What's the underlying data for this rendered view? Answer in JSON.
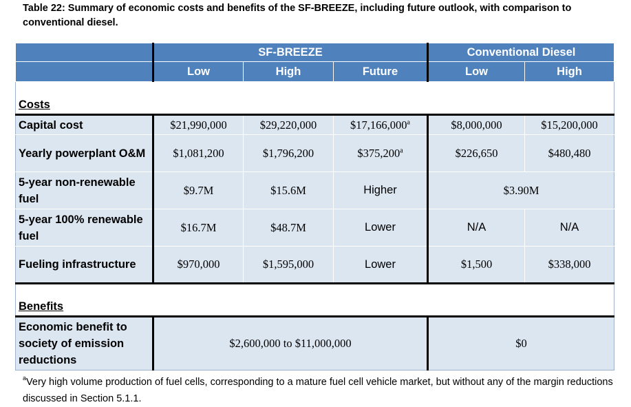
{
  "caption": "Table 22: Summary of economic costs and benefits of the SF-BREEZE, including future outlook, with comparison to conventional diesel.",
  "header": {
    "sf_breeze": "SF-BREEZE",
    "conventional_diesel": "Conventional Diesel",
    "sub": [
      "Low",
      "High",
      "Future",
      "Low",
      "High"
    ]
  },
  "sections": {
    "costs": "Costs",
    "benefits": "Benefits"
  },
  "rows": {
    "capital": {
      "label": "Capital cost",
      "values": [
        "$21,990,000",
        "$29,220,000",
        "$17,166,000",
        "$8,000,000",
        "$15,200,000"
      ],
      "future_sup": "a"
    },
    "om": {
      "label": "Yearly powerplant O&M",
      "values": [
        "$1,081,200",
        "$1,796,200",
        "$375,200",
        "$226,650",
        "$480,480"
      ],
      "future_sup": "a"
    },
    "nonrenew": {
      "label": "5-year non-renewable fuel",
      "values": [
        "$9.7M",
        "$15.6M",
        "Higher"
      ],
      "diesel": "$3.90M"
    },
    "renew": {
      "label": "5-year 100% renewable fuel",
      "values": [
        "$16.7M",
        "$48.7M",
        "Lower",
        "N/A",
        "N/A"
      ]
    },
    "fueling": {
      "label": "Fueling infrastructure",
      "values": [
        "$970,000",
        "$1,595,000",
        "Lower",
        "$1,500",
        "$338,000"
      ]
    },
    "benefit": {
      "label": "Economic benefit to society of emission reductions",
      "sf_breeze": "$2,600,000 to $11,000,000",
      "diesel": "$0"
    }
  },
  "footnote": {
    "marker": "a",
    "text": "Very high volume production of fuel cells, corresponding to a mature fuel cell vehicle market, but without any of the margin reductions discussed in Section 5.1.1."
  }
}
